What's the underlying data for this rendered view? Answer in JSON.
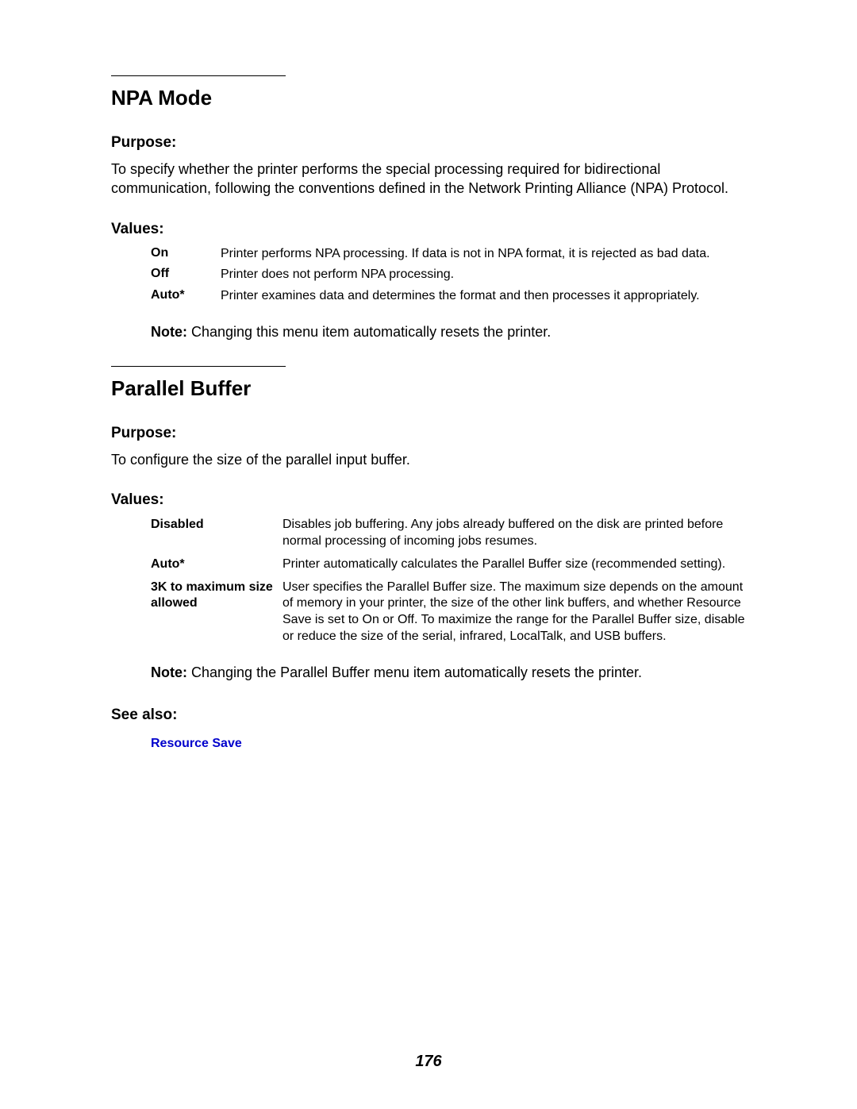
{
  "sections": [
    {
      "title": "NPA Mode",
      "purpose_heading": "Purpose:",
      "purpose_text": "To specify whether the printer performs the special processing required for bidirectional communication, following the conventions defined in the Network Printing Alliance (NPA) Protocol.",
      "values_heading": "Values:",
      "values": [
        {
          "label": "On",
          "desc": "Printer performs NPA processing. If data is not in NPA format, it is rejected as bad data."
        },
        {
          "label": "Off",
          "desc": "Printer does not perform NPA processing."
        },
        {
          "label": "Auto*",
          "desc": "Printer examines data and determines the format and then processes it appropriately."
        }
      ],
      "note_label": "Note:",
      "note_text": " Changing this menu item automatically resets the printer."
    },
    {
      "title": "Parallel Buffer",
      "purpose_heading": "Purpose:",
      "purpose_text": "To configure the size of the parallel input buffer.",
      "values_heading": "Values:",
      "values": [
        {
          "label": "Disabled",
          "desc": "Disables job buffering. Any jobs already buffered on the disk are printed before normal processing of incoming jobs resumes."
        },
        {
          "label": "Auto*",
          "desc": "Printer automatically calculates the Parallel Buffer size (recommended setting)."
        },
        {
          "label": "3K to maximum size allowed",
          "desc": "User specifies the Parallel Buffer size. The maximum size depends on the amount of memory in your printer, the size of the other link buffers, and whether Resource Save is set to On or Off. To maximize the range for the Parallel Buffer size, disable or reduce the size of the serial, infrared, LocalTalk, and USB buffers."
        }
      ],
      "note_label": "Note:",
      "note_text": " Changing the Parallel Buffer menu item automatically resets the printer.",
      "see_also_heading": "See also:",
      "see_also_link": "Resource Save"
    }
  ],
  "page_number": "176",
  "colors": {
    "link": "#0000cc",
    "text": "#000000",
    "background": "#ffffff"
  }
}
